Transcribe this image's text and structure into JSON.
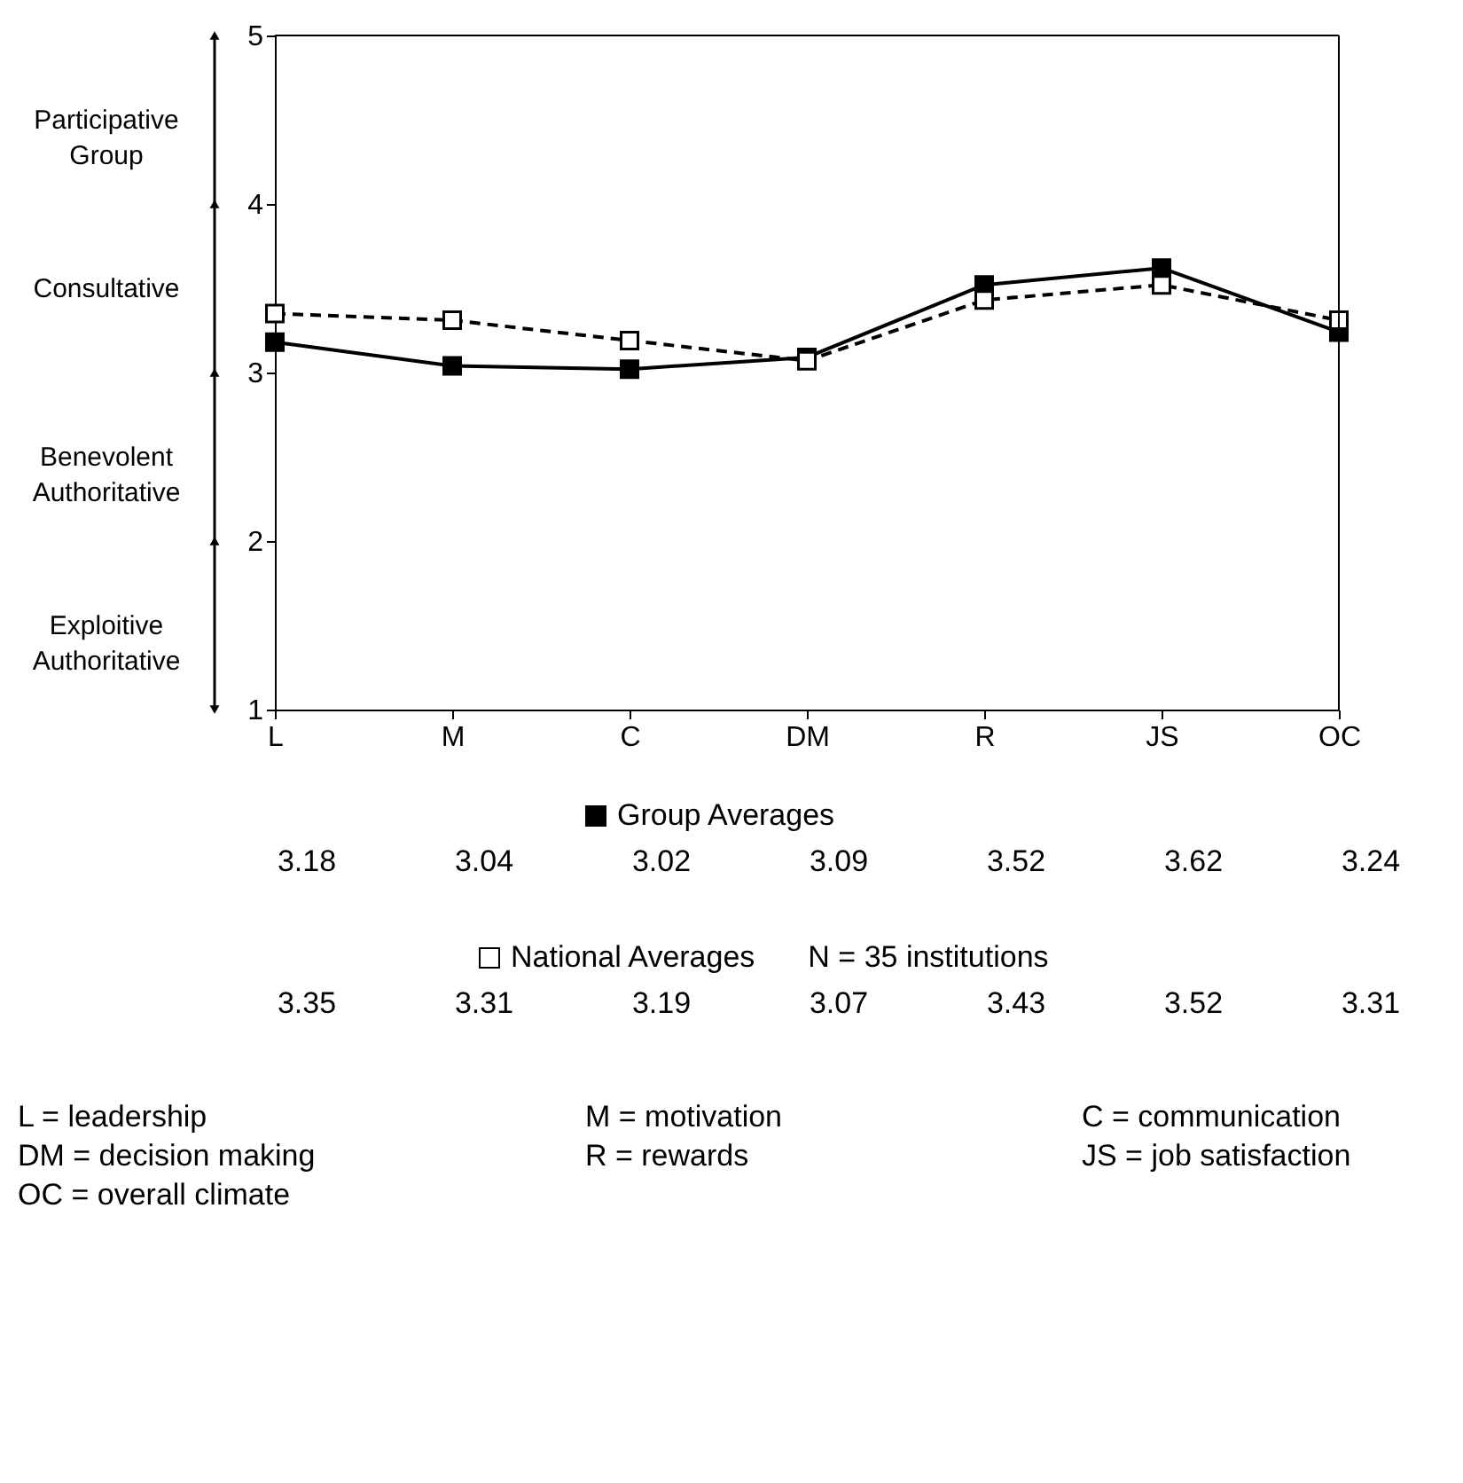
{
  "chart_data": {
    "type": "line",
    "categories": [
      "L",
      "M",
      "C",
      "DM",
      "R",
      "JS",
      "OC"
    ],
    "series": [
      {
        "name": "Group Averages",
        "color": "#000000",
        "line_style": "solid",
        "marker": "square",
        "values": [
          3.18,
          3.04,
          3.02,
          3.09,
          3.52,
          3.62,
          3.24
        ]
      },
      {
        "name": "National Averages",
        "color": "#000000",
        "line_style": "dashed",
        "marker": "square",
        "values": [
          3.35,
          3.31,
          3.19,
          3.07,
          3.43,
          3.52,
          3.31
        ]
      }
    ],
    "ylim": [
      1,
      5
    ],
    "yticks": [
      1,
      2,
      3,
      4,
      5
    ],
    "grid": false,
    "legend": "bottom",
    "data_labels": true,
    "annotations": [
      "Participative Group",
      "Consultative",
      "Benevolent Authoritative",
      "Exploitive Authoritative",
      "N = 35 institutions",
      "L = leadership",
      "M = motivation",
      "C = communication",
      "DM = decision making",
      "R = rewards",
      "JS = job satisfaction",
      "OC = overall climate"
    ]
  }
}
